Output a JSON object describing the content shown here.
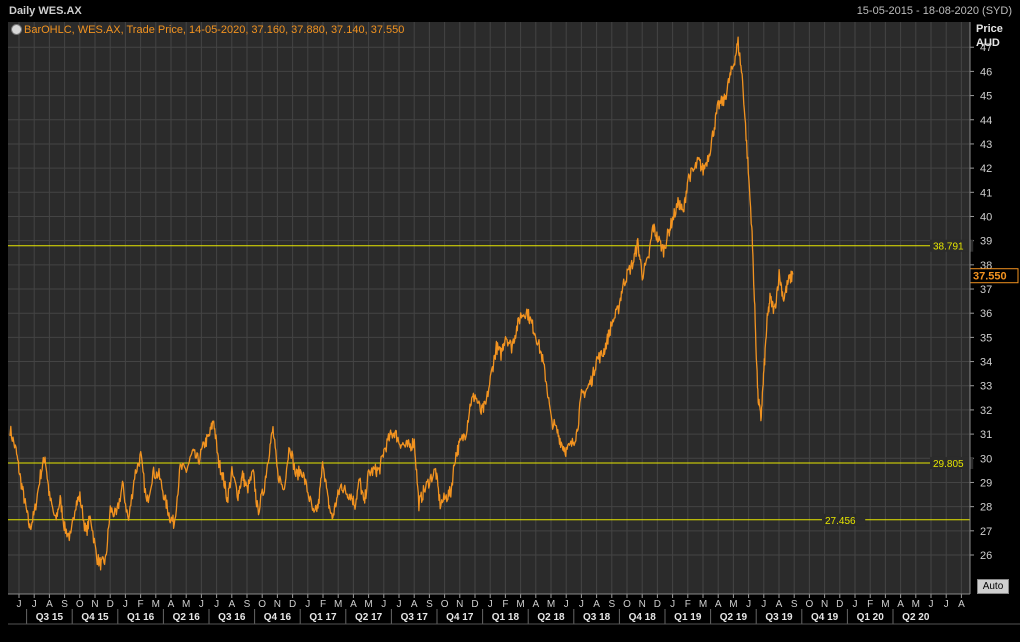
{
  "window": {
    "title": "Daily WES.AX",
    "date_range": "15-05-2015 - 18-08-2020 (SYD)"
  },
  "legend": {
    "text": "BarOHLC, WES.AX, Trade Price, 14-05-2020, 37.160, 37.880, 37.140, 37.550"
  },
  "axis": {
    "price_label": "Price",
    "currency_label": "AUD",
    "auto_button": "Auto"
  },
  "colors": {
    "series": "#f29320",
    "hline": "#e6e600",
    "grid": "#444444",
    "background": "#2b2b2b",
    "last_price_tag": "#f29320"
  },
  "chart_data": {
    "type": "line",
    "title": "Daily WES.AX",
    "ylabel": "Price AUD",
    "ylim": [
      25.2,
      47.8
    ],
    "yticks": [
      26,
      27,
      28,
      29,
      30,
      31,
      32,
      33,
      34,
      35,
      36,
      37,
      38,
      39,
      40,
      41,
      42,
      43,
      44,
      45,
      46,
      47
    ],
    "x_month_labels": [
      "J",
      "J",
      "A",
      "S",
      "O",
      "N",
      "D",
      "J",
      "F",
      "M",
      "A",
      "M",
      "J",
      "J",
      "A",
      "S",
      "O",
      "N",
      "D",
      "J",
      "F",
      "M",
      "A",
      "M",
      "J",
      "J",
      "A",
      "S",
      "O",
      "N",
      "D",
      "J",
      "F",
      "M",
      "A",
      "M",
      "J",
      "J",
      "A",
      "S",
      "O",
      "N",
      "D",
      "J",
      "F",
      "M",
      "A",
      "M",
      "J",
      "J",
      "A",
      "S",
      "O",
      "N",
      "D",
      "J",
      "F",
      "M",
      "A",
      "M",
      "J",
      "J",
      "A"
    ],
    "x_quarter_labels": [
      "Q3 15",
      "Q4 15",
      "Q1 16",
      "Q2 16",
      "Q3 16",
      "Q4 16",
      "Q1 17",
      "Q2 17",
      "Q3 17",
      "Q4 17",
      "Q1 18",
      "Q2 18",
      "Q3 18",
      "Q4 18",
      "Q1 19",
      "Q2 19",
      "Q3 19",
      "Q4 19",
      "Q1 20",
      "Q2 20"
    ],
    "series": [
      {
        "values": [
          [
            0,
            31.2
          ],
          [
            0.4,
            30.3
          ],
          [
            0.7,
            29.1
          ],
          [
            1,
            28.1
          ],
          [
            1.3,
            27.1
          ],
          [
            1.6,
            27.7
          ],
          [
            2,
            29.3
          ],
          [
            2.3,
            30.1
          ],
          [
            2.6,
            28.4
          ],
          [
            3,
            27.4
          ],
          [
            3.3,
            28.3
          ],
          [
            3.6,
            27.1
          ],
          [
            4,
            26.7
          ],
          [
            4.3,
            28.1
          ],
          [
            4.6,
            28.4
          ],
          [
            5,
            26.9
          ],
          [
            5.3,
            27.6
          ],
          [
            5.7,
            25.9
          ],
          [
            6,
            25.6
          ],
          [
            6.3,
            25.8
          ],
          [
            6.6,
            27.9
          ],
          [
            7,
            27.6
          ],
          [
            7.4,
            28.9
          ],
          [
            7.8,
            27.4
          ],
          [
            8.2,
            29.3
          ],
          [
            8.6,
            30.1
          ],
          [
            9,
            28.1
          ],
          [
            9.4,
            29.4
          ],
          [
            9.8,
            29.3
          ],
          [
            10.2,
            28.3
          ],
          [
            10.5,
            27.6
          ],
          [
            10.8,
            27.3
          ],
          [
            11.2,
            29.6
          ],
          [
            11.6,
            29.5
          ],
          [
            12,
            30.2
          ],
          [
            12.4,
            29.9
          ],
          [
            12.8,
            30.6
          ],
          [
            13.1,
            30.9
          ],
          [
            13.4,
            31.6
          ],
          [
            13.7,
            29.9
          ],
          [
            14,
            29.3
          ],
          [
            14.3,
            28.3
          ],
          [
            14.6,
            29.4
          ],
          [
            15,
            28.5
          ],
          [
            15.3,
            29.3
          ],
          [
            15.6,
            28.7
          ],
          [
            16,
            29.4
          ],
          [
            16.3,
            27.8
          ],
          [
            16.7,
            28.7
          ],
          [
            17,
            30.1
          ],
          [
            17.3,
            31.2
          ],
          [
            17.6,
            29.4
          ],
          [
            18,
            28.7
          ],
          [
            18.4,
            30.6
          ],
          [
            18.8,
            29.3
          ],
          [
            19.2,
            29.5
          ],
          [
            19.6,
            28.6
          ],
          [
            20,
            27.6
          ],
          [
            20.3,
            28.1
          ],
          [
            20.6,
            29.9
          ],
          [
            20.9,
            28.3
          ],
          [
            21.2,
            27.5
          ],
          [
            21.5,
            28.3
          ],
          [
            21.8,
            28.9
          ],
          [
            22.1,
            28.6
          ],
          [
            22.4,
            28.5
          ],
          [
            22.7,
            28.1
          ],
          [
            23,
            29.1
          ],
          [
            23.3,
            28.1
          ],
          [
            23.6,
            29.4
          ],
          [
            24,
            29.5
          ],
          [
            24.3,
            29.5
          ],
          [
            24.6,
            30.3
          ],
          [
            25,
            30.9
          ],
          [
            25.3,
            31.1
          ],
          [
            25.6,
            30.7
          ],
          [
            26,
            30.5
          ],
          [
            26.3,
            30.5
          ],
          [
            26.6,
            30.7
          ],
          [
            26.9,
            28.1
          ],
          [
            27.2,
            28.6
          ],
          [
            27.6,
            29.1
          ],
          [
            28,
            29.5
          ],
          [
            28.3,
            28.1
          ],
          [
            28.7,
            28.4
          ],
          [
            29,
            28.6
          ],
          [
            29.3,
            30.1
          ],
          [
            29.6,
            30.6
          ],
          [
            30,
            31.1
          ],
          [
            30.3,
            32.3
          ],
          [
            30.6,
            32.6
          ],
          [
            31,
            31.9
          ],
          [
            31.3,
            32.2
          ],
          [
            31.7,
            33.6
          ],
          [
            32,
            34.6
          ],
          [
            32.3,
            34.3
          ],
          [
            32.6,
            35.1
          ],
          [
            33,
            34.6
          ],
          [
            33.3,
            35.3
          ],
          [
            33.6,
            35.9
          ],
          [
            34,
            36.1
          ],
          [
            34.3,
            35.6
          ],
          [
            34.6,
            35.1
          ],
          [
            35,
            34.2
          ],
          [
            35.3,
            33.1
          ],
          [
            35.6,
            31.6
          ],
          [
            36,
            31.1
          ],
          [
            36.3,
            30.6
          ],
          [
            36.6,
            30.3
          ],
          [
            37,
            30.6
          ],
          [
            37.3,
            31.1
          ],
          [
            37.6,
            32.6
          ],
          [
            38,
            32.9
          ],
          [
            38.3,
            33.3
          ],
          [
            38.6,
            34.1
          ],
          [
            39,
            34.3
          ],
          [
            39.3,
            34.9
          ],
          [
            39.6,
            35.6
          ],
          [
            40,
            36.1
          ],
          [
            40.3,
            37.1
          ],
          [
            40.6,
            37.6
          ],
          [
            41,
            38.1
          ],
          [
            41.3,
            38.9
          ],
          [
            41.6,
            37.6
          ],
          [
            42,
            38.2
          ],
          [
            42.3,
            39.6
          ],
          [
            42.6,
            39.1
          ],
          [
            43,
            38.6
          ],
          [
            43.3,
            39.3
          ],
          [
            43.6,
            39.9
          ],
          [
            44,
            40.6
          ],
          [
            44.3,
            40.1
          ],
          [
            44.6,
            41.6
          ],
          [
            45,
            41.9
          ],
          [
            45.3,
            42.3
          ],
          [
            45.6,
            41.9
          ],
          [
            46,
            42.6
          ],
          [
            46.3,
            43.6
          ],
          [
            46.6,
            44.6
          ],
          [
            47,
            44.8
          ],
          [
            47.3,
            45.6
          ],
          [
            47.6,
            46.3
          ],
          [
            47.9,
            47.2
          ],
          [
            48.2,
            45.6
          ],
          [
            48.5,
            42.6
          ],
          [
            48.8,
            39.6
          ],
          [
            49,
            36.1
          ],
          [
            49.2,
            32.6
          ],
          [
            49.4,
            31.6
          ],
          [
            49.6,
            33.6
          ],
          [
            49.8,
            35.6
          ],
          [
            50,
            36.6
          ],
          [
            50.3,
            36.1
          ],
          [
            50.6,
            37.6
          ],
          [
            50.9,
            36.6
          ],
          [
            51.2,
            37.3
          ],
          [
            51.5,
            37.6
          ]
        ]
      }
    ],
    "hlines": [
      38.791,
      29.805,
      27.456
    ],
    "last_price": 37.55,
    "grid": true,
    "legend_position": "top-left"
  }
}
